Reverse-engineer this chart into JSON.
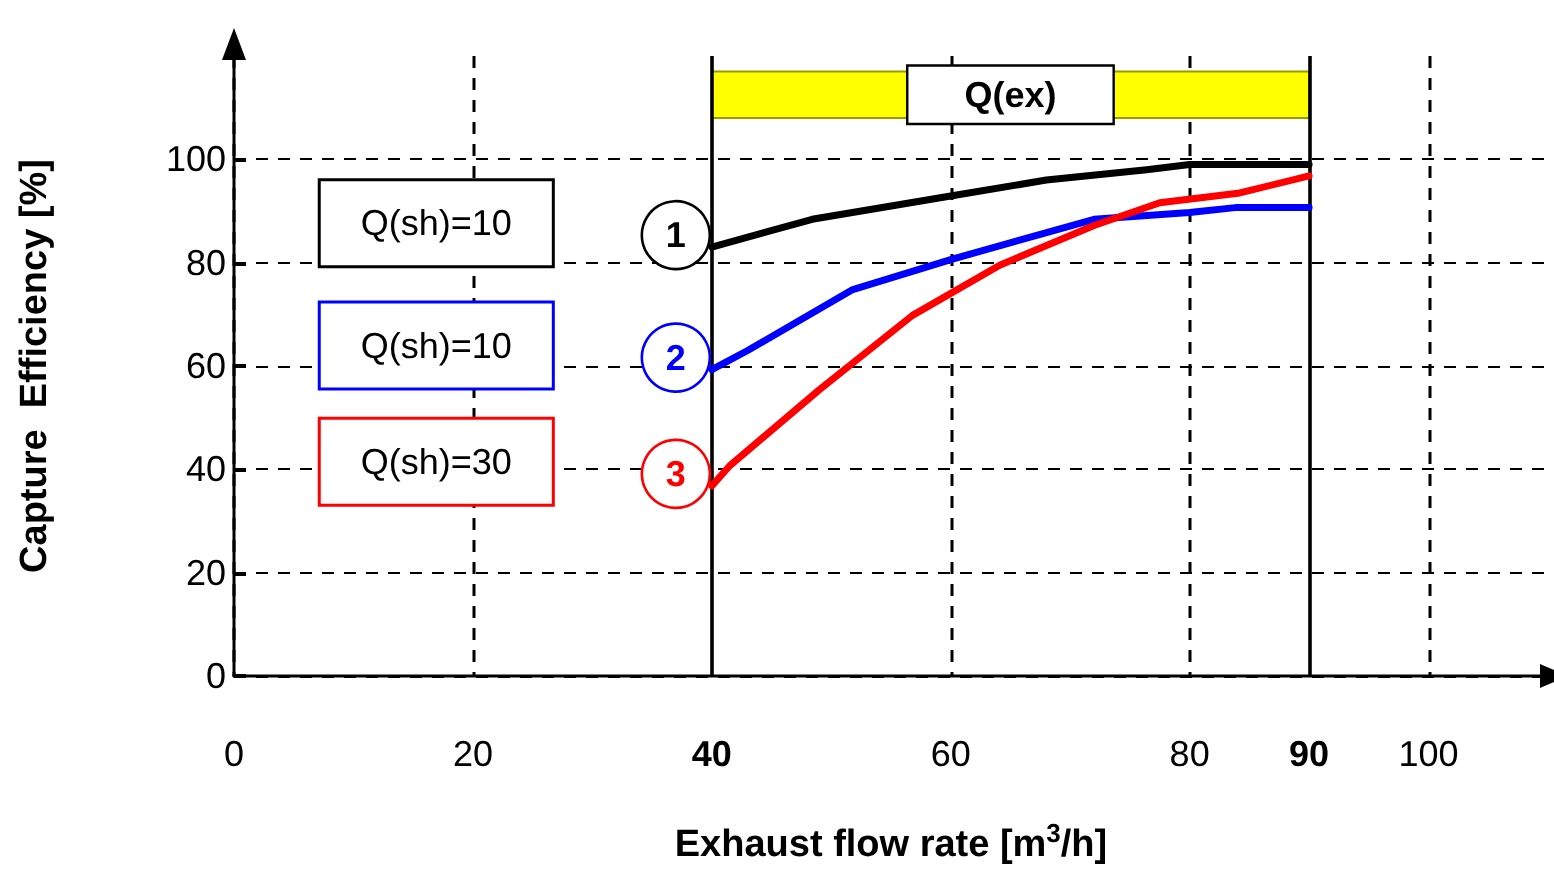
{
  "chart_data": {
    "type": "line",
    "xlabel": "Exhaust flow rate [m$^{3}$/h]",
    "ylabel": "Capture  Efficiency [%]",
    "xlim": [
      0,
      110
    ],
    "ylim": [
      0,
      120
    ],
    "xticks": [
      0,
      20,
      40,
      60,
      80,
      90,
      100
    ],
    "yticks": [
      0,
      20,
      40,
      60,
      80,
      100
    ],
    "grid": true,
    "legend": false,
    "marker": "none",
    "line_style": "solid",
    "series": [
      {
        "name": "1",
        "color": "#000000",
        "x": [
          40,
          48.4,
          60,
          68,
          76.4,
          80,
          90
        ],
        "values": [
          83,
          88.4,
          92.9,
          96,
          98,
          99,
          99
        ]
      },
      {
        "name": "2",
        "color": "#0000ff",
        "x": [
          40,
          43,
          51.8,
          60,
          72,
          80,
          84,
          90
        ],
        "values": [
          59.3,
          63,
          74.8,
          80.6,
          88.4,
          89.7,
          90.7,
          90.7
        ]
      },
      {
        "name": "3",
        "color": "#ff0000",
        "x": [
          40,
          41.5,
          49,
          56.8,
          64.1,
          72,
          77.5,
          84.2,
          90
        ],
        "values": [
          36.8,
          40.7,
          55.4,
          69.8,
          79.5,
          87.2,
          91.6,
          93.5,
          96.8
        ]
      }
    ],
    "bands": [
      {
        "axis": "x",
        "from": 40,
        "to": 90,
        "label": "Q(ex)",
        "color": "#ffff00"
      }
    ],
    "annotations": [
      "Q(sh)=10",
      "Q(sh)=10",
      "Q(sh)=30"
    ]
  }
}
